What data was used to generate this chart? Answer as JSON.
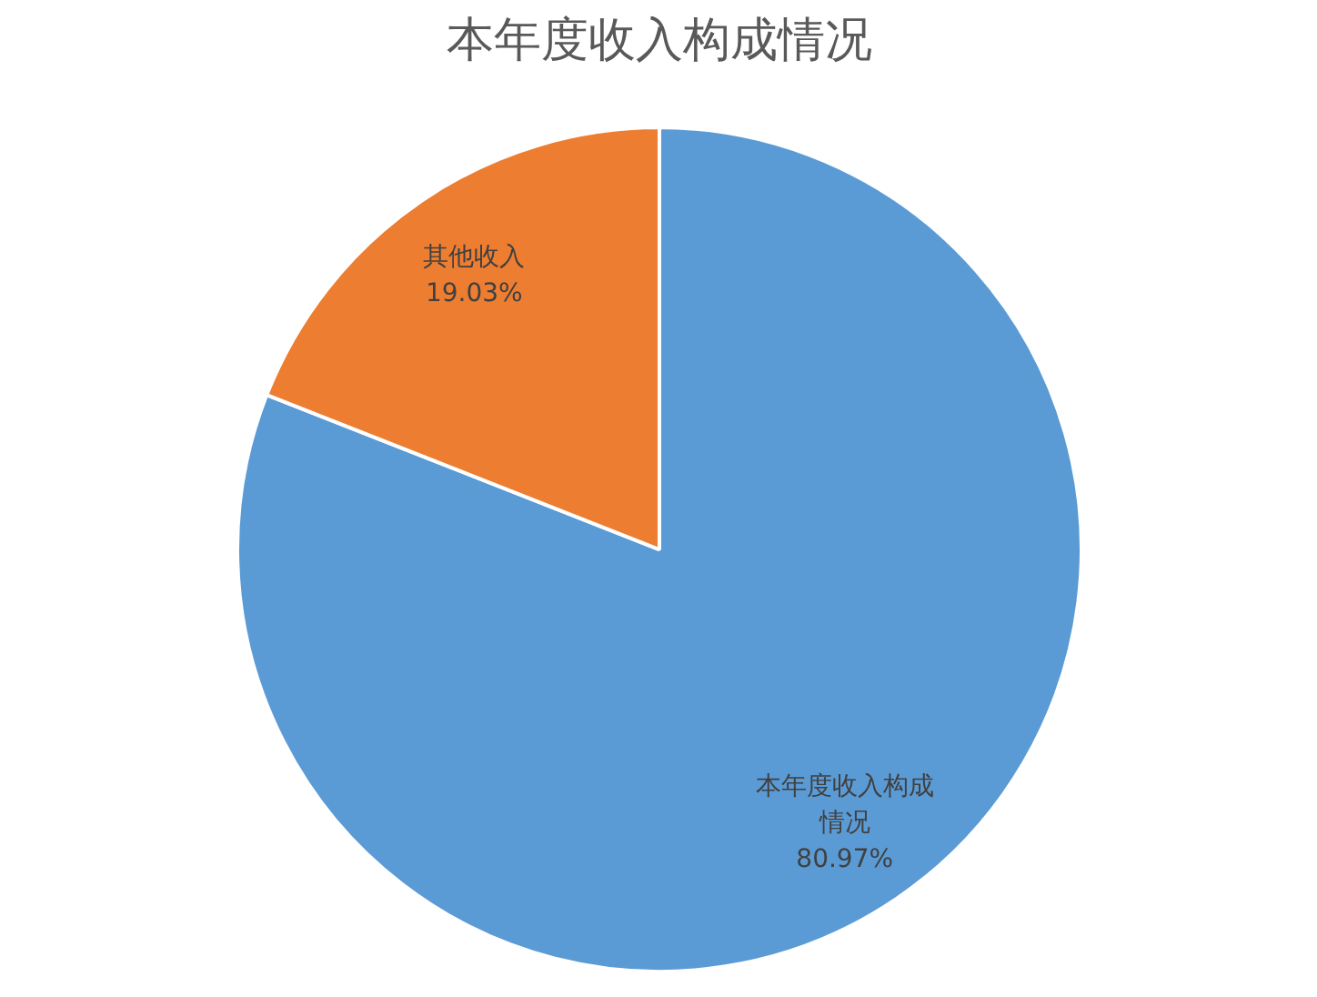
{
  "chart_data": {
    "type": "pie",
    "title": "本年度收入构成情况",
    "categories": [
      "本年度收入构成情况",
      "其他收入"
    ],
    "values": [
      80.97,
      19.03
    ],
    "colors": [
      "#5b9bd5",
      "#ed7d31"
    ],
    "value_labels": [
      "80.97%",
      "19.03%"
    ]
  }
}
